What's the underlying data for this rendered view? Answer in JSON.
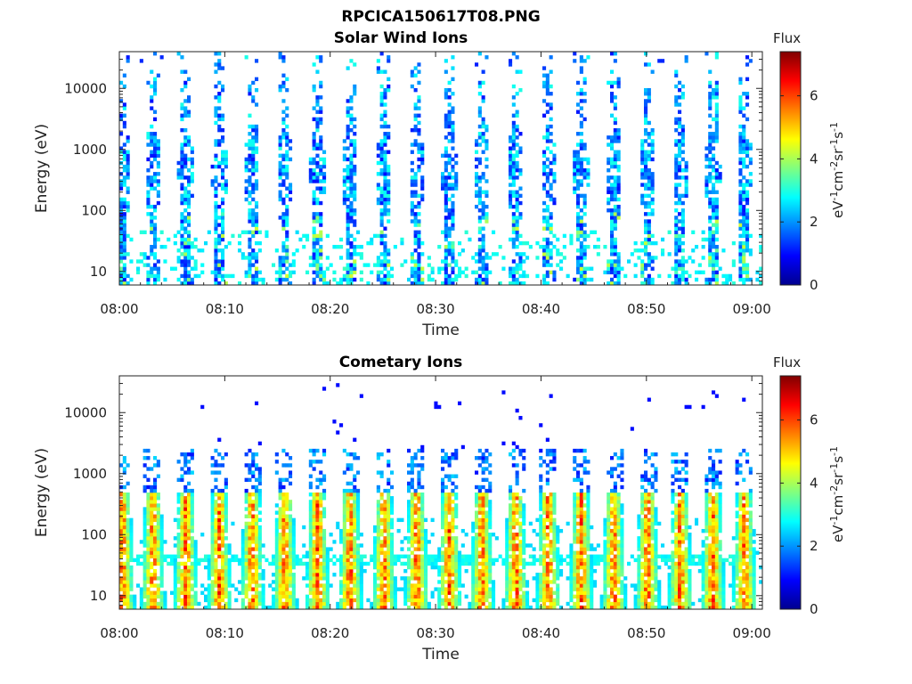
{
  "figure": {
    "suptitle": "RPCICA150617T08.PNG"
  },
  "colorbar": {
    "label_top": "Flux",
    "unit_base": "eV",
    "unit_parts": [
      {
        "t": "eV",
        "sup": false
      },
      {
        "t": "-1",
        "sup": true
      },
      {
        "t": "cm",
        "sup": false
      },
      {
        "t": "-2",
        "sup": true
      },
      {
        "t": "sr",
        "sup": false
      },
      {
        "t": "-1",
        "sup": true
      },
      {
        "t": "s",
        "sup": false
      },
      {
        "t": "-1",
        "sup": true
      }
    ],
    "ticks": [
      "0",
      "2",
      "4",
      "6"
    ],
    "range": [
      0,
      7.4
    ],
    "colormap": "jet"
  },
  "chart_data": [
    {
      "type": "heatmap",
      "title": "Solar Wind Ions",
      "xlabel": "Time",
      "ylabel": "Energy (eV)",
      "yscale": "log",
      "ylim": [
        6,
        40000
      ],
      "xlim": [
        "08:00",
        "09:01"
      ],
      "xticks": [
        "08:00",
        "08:10",
        "08:20",
        "08:30",
        "08:40",
        "08:50",
        "09:00"
      ],
      "yticks": [
        "10",
        "100",
        "1000",
        "10000"
      ],
      "bursts_minutes": [
        0.3,
        3.2,
        6.3,
        9.5,
        12.6,
        15.7,
        18.8,
        21.9,
        25.1,
        28.2,
        31.3,
        34.4,
        37.6,
        40.7,
        43.8,
        46.9,
        50.1,
        53.2,
        56.3,
        59.3
      ],
      "z_typical": [
        1.0,
        3.0
      ],
      "z_peak": 4.3
    },
    {
      "type": "heatmap",
      "title": "Cometary Ions",
      "xlabel": "Time",
      "ylabel": "Energy (eV)",
      "yscale": "log",
      "ylim": [
        6,
        40000
      ],
      "xlim": [
        "08:00",
        "09:01"
      ],
      "xticks": [
        "08:00",
        "08:10",
        "08:20",
        "08:30",
        "08:40",
        "08:50",
        "09:00"
      ],
      "yticks": [
        "10",
        "100",
        "1000",
        "10000"
      ],
      "bursts_minutes": [
        0.3,
        3.2,
        6.3,
        9.5,
        12.6,
        15.7,
        18.8,
        21.9,
        25.1,
        28.2,
        31.3,
        34.4,
        37.6,
        40.7,
        43.8,
        46.9,
        50.1,
        53.2,
        56.3,
        59.3
      ],
      "z_typical": [
        2.5,
        5.0
      ],
      "z_peak": 6.8
    }
  ]
}
